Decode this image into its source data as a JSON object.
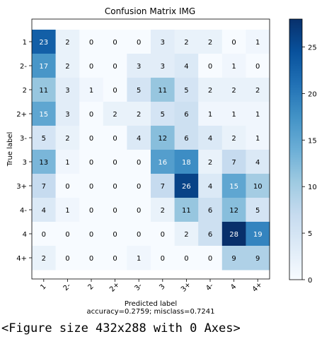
{
  "chart_data": {
    "type": "heatmap",
    "title": "Confusion Matrix IMG",
    "xlabel": "Predicted label",
    "xlabel_note": "accuracy=0.2759; misclass=0.7241",
    "ylabel": "True label",
    "categories": [
      "1",
      "2-",
      "2",
      "2+",
      "3-",
      "3",
      "3+",
      "4-",
      "4",
      "4+"
    ],
    "matrix": [
      [
        23,
        2,
        0,
        0,
        0,
        3,
        2,
        2,
        0,
        1
      ],
      [
        17,
        2,
        0,
        0,
        3,
        3,
        4,
        0,
        1,
        0
      ],
      [
        11,
        3,
        1,
        0,
        5,
        11,
        5,
        2,
        2,
        2
      ],
      [
        15,
        3,
        0,
        2,
        2,
        5,
        6,
        1,
        1,
        1
      ],
      [
        5,
        2,
        0,
        0,
        4,
        12,
        6,
        4,
        2,
        1
      ],
      [
        13,
        1,
        0,
        0,
        0,
        16,
        18,
        2,
        7,
        4
      ],
      [
        7,
        0,
        0,
        0,
        0,
        7,
        26,
        4,
        15,
        10
      ],
      [
        4,
        1,
        0,
        0,
        0,
        2,
        11,
        6,
        12,
        5
      ],
      [
        0,
        0,
        0,
        0,
        0,
        0,
        2,
        6,
        28,
        19
      ],
      [
        2,
        0,
        0,
        0,
        1,
        0,
        0,
        0,
        9,
        9
      ]
    ],
    "colorbar": {
      "min": 0,
      "max": 28,
      "ticks": [
        0,
        5,
        10,
        15,
        20,
        25
      ],
      "colormap": "Blues"
    },
    "grid": false
  },
  "figure_repr": "<Figure size 432x288 with 0 Axes>"
}
